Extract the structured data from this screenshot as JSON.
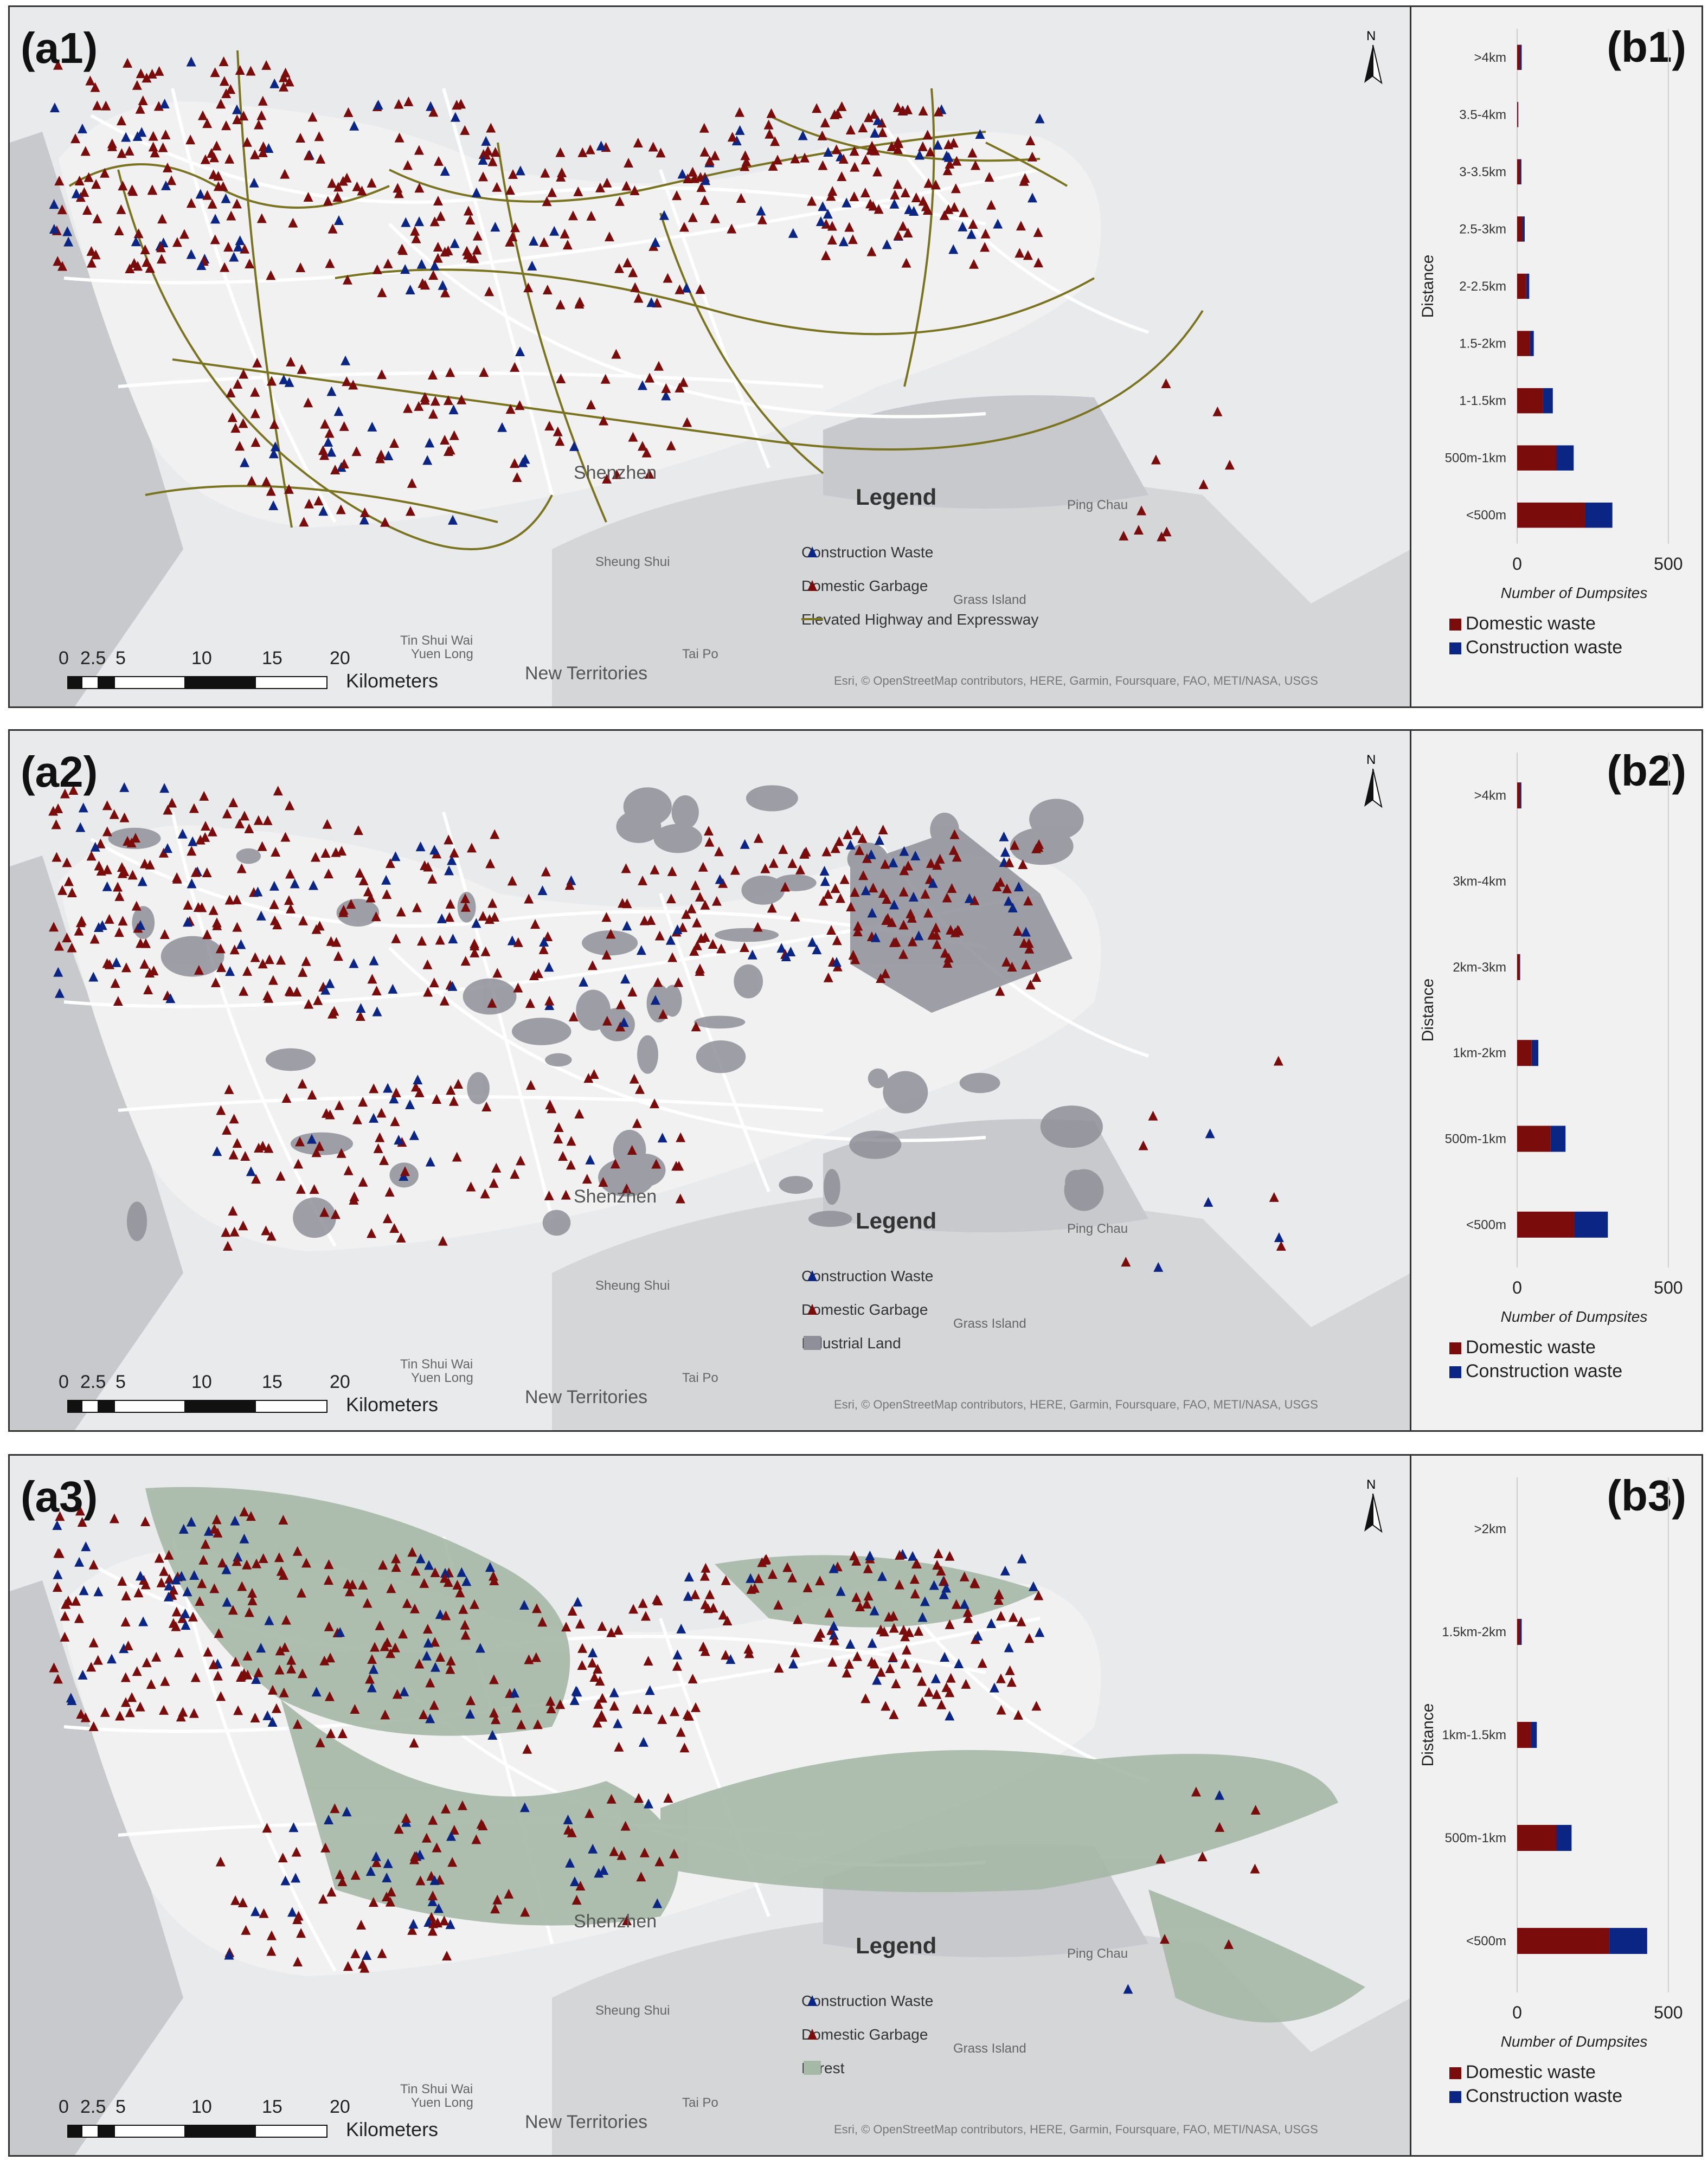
{
  "panels": [
    {
      "map_label": "(a1)",
      "chart_label": "(b1)",
      "legend": {
        "title": "Legend",
        "items": [
          "Construction Waste",
          "Domestic Garbage",
          "Elevated Highway and Expressway"
        ]
      },
      "places": [
        "Shenzhen",
        "Ping Chau",
        "Sheung Shui",
        "Grass Island",
        "Tin Shui Wai",
        "Yuen Long",
        "Tai Po",
        "New Territories"
      ],
      "attribution": "Esri, © OpenStreetMap contributors, HERE, Garmin, Foursquare, FAO, METI/NASA, USGS",
      "scale": {
        "ticks": [
          "0",
          "2.5",
          "5",
          "10",
          "15",
          "20"
        ],
        "unit": "Kilometers"
      },
      "north": "N",
      "chart_data": {
        "type": "bar",
        "orientation": "horizontal",
        "stacked": true,
        "categories": [
          ">4km",
          "3.5-4km",
          "3-3.5km",
          "2.5-3km",
          "2-2.5km",
          "1.5-2km",
          "1-1.5km",
          "500m-1km",
          "<500m"
        ],
        "series": [
          {
            "name": "Domestic waste",
            "color": "#7b0c0c",
            "values": [
              10,
              2,
              10,
              18,
              30,
              42,
              85,
              130,
              225
            ]
          },
          {
            "name": "Construction waste",
            "color": "#0b2585",
            "values": [
              5,
              2,
              4,
              7,
              10,
              13,
              33,
              57,
              90
            ]
          }
        ],
        "xlabel": "Number of Dumpsites",
        "ylabel": "Distance",
        "xticks": [
          "0",
          "500"
        ],
        "xlim": [
          0,
          520
        ]
      }
    },
    {
      "map_label": "(a2)",
      "chart_label": "(b2)",
      "legend": {
        "title": "Legend",
        "items": [
          "Construction Waste",
          "Domestic Garbage",
          "Industrial Land"
        ]
      },
      "places": [
        "Shenzhen",
        "Ping Chau",
        "Sheung Shui",
        "Grass Island",
        "Tin Shui Wai",
        "Yuen Long",
        "Tai Po",
        "New Territories"
      ],
      "attribution": "Esri, © OpenStreetMap contributors, HERE, Garmin, Foursquare, FAO, METI/NASA, USGS",
      "scale": {
        "ticks": [
          "0",
          "2.5",
          "5",
          "10",
          "15",
          "20"
        ],
        "unit": "Kilometers"
      },
      "north": "N",
      "chart_data": {
        "type": "bar",
        "orientation": "horizontal",
        "stacked": true,
        "categories": [
          ">4km",
          "3km-4km",
          "2km-3km",
          "1km-2km",
          "500m-1km",
          "<500m"
        ],
        "series": [
          {
            "name": "Domestic waste",
            "color": "#7b0c0c",
            "values": [
              10,
              0,
              8,
              48,
              110,
              190
            ]
          },
          {
            "name": "Construction waste",
            "color": "#0b2585",
            "values": [
              4,
              0,
              2,
              22,
              50,
              110
            ]
          }
        ],
        "xlabel": "Number of Dumpsites",
        "ylabel": "Distance",
        "xticks": [
          "0",
          "500"
        ],
        "xlim": [
          0,
          520
        ]
      }
    },
    {
      "map_label": "(a3)",
      "chart_label": "(b3)",
      "legend": {
        "title": "Legend",
        "items": [
          "Construction Waste",
          "Domestic Garbage",
          "Forest"
        ]
      },
      "places": [
        "Shenzhen",
        "Ping Chau",
        "Sheung Shui",
        "Grass Island",
        "Tin Shui Wai",
        "Yuen Long",
        "Tai Po",
        "New Territories"
      ],
      "attribution": "Esri, © OpenStreetMap contributors, HERE, Garmin, Foursquare, FAO, METI/NASA, USGS",
      "scale": {
        "ticks": [
          "0",
          "2.5",
          "5",
          "10",
          "15",
          "20"
        ],
        "unit": "Kilometers"
      },
      "north": "N",
      "chart_data": {
        "type": "bar",
        "orientation": "horizontal",
        "stacked": true,
        "categories": [
          ">2km",
          "1.5km-2km",
          "1km-1.5km",
          "500m-1km",
          "<500m"
        ],
        "series": [
          {
            "name": "Domestic waste",
            "color": "#7b0c0c",
            "values": [
              0,
              10,
              45,
              130,
              305
            ]
          },
          {
            "name": "Construction waste",
            "color": "#0b2585",
            "values": [
              0,
              5,
              20,
              50,
              125
            ]
          }
        ],
        "xlabel": "Number of Dumpsites",
        "ylabel": "Distance",
        "xticks": [
          "0",
          "500"
        ],
        "xlim": [
          0,
          520
        ]
      }
    }
  ],
  "colors": {
    "domestic": "#7b0c0c",
    "construction": "#0b2585",
    "highway": "#7a7320",
    "industrial": "#8f8f99",
    "forest": "#a6b8a6",
    "sea": "#c7c9cc",
    "land": "#ededee"
  }
}
